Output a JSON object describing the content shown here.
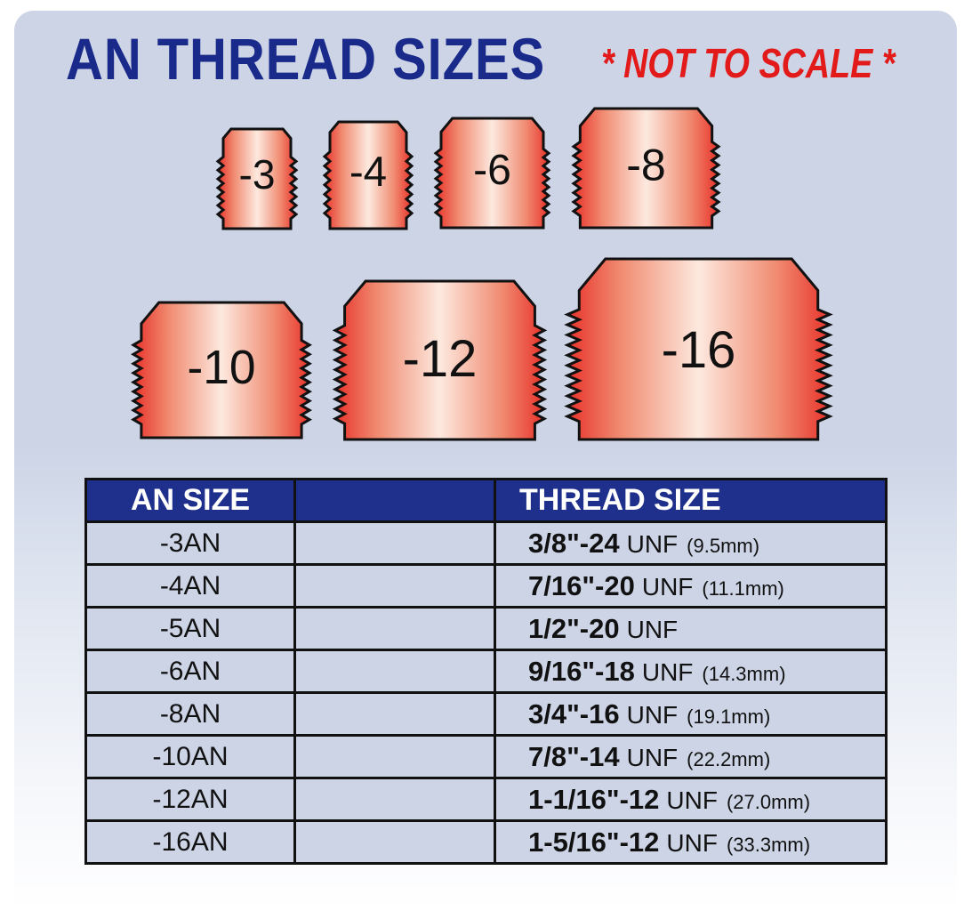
{
  "title": "AN THREAD SIZES",
  "note": "* NOT TO SCALE *",
  "fittings": [
    "-3",
    "-4",
    "-6",
    "-8",
    "-10",
    "-12",
    "-16"
  ],
  "colors": {
    "title": "#1a2a8a",
    "note": "#e21a1a",
    "header_bg": "#1f2f8c",
    "panel": "#ccd4e6",
    "fitting_edge": "#e8322a",
    "fitting_center": "#fde6dc"
  },
  "table": {
    "headers": [
      "AN SIZE",
      "",
      "THREAD SIZE"
    ],
    "rows": [
      {
        "an": "-3AN",
        "frac": "3/8\"-24",
        "unf": "UNF",
        "mm": "(9.5mm)"
      },
      {
        "an": "-4AN",
        "frac": "7/16\"-20",
        "unf": "UNF",
        "mm": "(11.1mm)"
      },
      {
        "an": "-5AN",
        "frac": "1/2\"-20",
        "unf": "UNF",
        "mm": ""
      },
      {
        "an": "-6AN",
        "frac": "9/16\"-18",
        "unf": "UNF",
        "mm": "(14.3mm)"
      },
      {
        "an": "-8AN",
        "frac": "3/4\"-16",
        "unf": "UNF",
        "mm": "(19.1mm)"
      },
      {
        "an": "-10AN",
        "frac": "7/8\"-14",
        "unf": "UNF",
        "mm": "(22.2mm)"
      },
      {
        "an": "-12AN",
        "frac": "1-1/16\"-12",
        "unf": "UNF",
        "mm": "(27.0mm)"
      },
      {
        "an": "-16AN",
        "frac": "1-5/16\"-12",
        "unf": "UNF",
        "mm": "(33.3mm)"
      }
    ]
  }
}
